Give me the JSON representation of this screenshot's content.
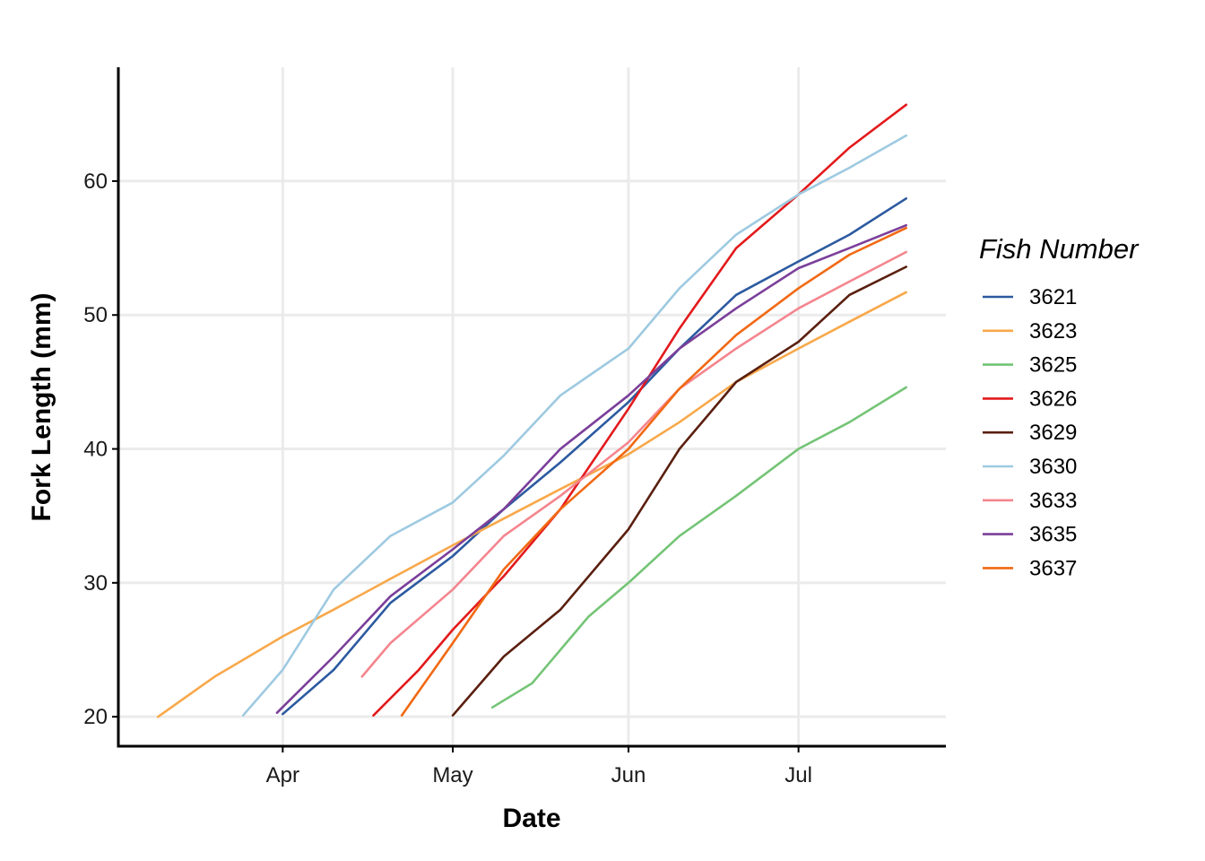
{
  "chart_data": {
    "type": "line",
    "xlabel": "Date",
    "ylabel": "Fork Length (mm)",
    "x_ticks": [
      {
        "label": "Apr",
        "value": "04-01"
      },
      {
        "label": "May",
        "value": "05-01"
      },
      {
        "label": "Jun",
        "value": "06-01"
      },
      {
        "label": "Jul",
        "value": "07-01"
      }
    ],
    "xlim": [
      "03-03",
      "07-27"
    ],
    "y_ticks": [
      20,
      30,
      40,
      50,
      60
    ],
    "ylim": [
      17.8,
      68.5
    ],
    "grid": true,
    "legend": {
      "title": "Fish Number",
      "placement": "right"
    },
    "series": [
      {
        "name": "3621",
        "color": "#2c5aa0",
        "x": [
          "04-01",
          "04-10",
          "04-20",
          "05-01",
          "05-10",
          "05-20",
          "06-01",
          "06-10",
          "06-20",
          "07-01",
          "07-10",
          "07-20"
        ],
        "y": [
          20.2,
          23.5,
          28.5,
          32.0,
          35.5,
          39.0,
          43.5,
          47.5,
          51.5,
          54.0,
          56.0,
          58.7
        ]
      },
      {
        "name": "3623",
        "color": "#f8a84a",
        "x": [
          "03-10",
          "03-20",
          "04-01",
          "04-10",
          "04-20",
          "05-01",
          "05-10",
          "05-20",
          "06-01",
          "06-10",
          "06-20",
          "07-01",
          "07-10",
          "07-20"
        ],
        "y": [
          20.0,
          23.0,
          26.0,
          28.0,
          30.3,
          32.8,
          34.8,
          37.0,
          39.6,
          42.0,
          45.0,
          47.5,
          49.5,
          51.7
        ]
      },
      {
        "name": "3625",
        "color": "#74c476",
        "x": [
          "05-08",
          "05-15",
          "05-25",
          "06-01",
          "06-10",
          "06-20",
          "07-01",
          "07-10",
          "07-20"
        ],
        "y": [
          20.7,
          22.5,
          27.5,
          30.0,
          33.5,
          36.5,
          40.0,
          42.0,
          44.6
        ]
      },
      {
        "name": "3626",
        "color": "#e31a1c",
        "x": [
          "04-17",
          "04-25",
          "05-01",
          "05-10",
          "05-20",
          "06-01",
          "06-10",
          "06-20",
          "07-01",
          "07-10",
          "07-20"
        ],
        "y": [
          20.1,
          23.5,
          26.5,
          30.5,
          35.5,
          43.0,
          49.0,
          55.0,
          59.0,
          62.5,
          65.7
        ]
      },
      {
        "name": "3629",
        "color": "#5a1f0f",
        "x": [
          "05-01",
          "05-10",
          "05-20",
          "06-01",
          "06-10",
          "06-20",
          "07-01",
          "07-10",
          "07-20"
        ],
        "y": [
          20.1,
          24.5,
          28.0,
          34.0,
          40.0,
          45.0,
          48.0,
          51.5,
          53.6
        ]
      },
      {
        "name": "3630",
        "color": "#9ecae1",
        "x": [
          "03-25",
          "04-01",
          "04-10",
          "04-20",
          "05-01",
          "05-10",
          "05-20",
          "06-01",
          "06-10",
          "06-20",
          "07-01",
          "07-10",
          "07-20"
        ],
        "y": [
          20.1,
          23.5,
          29.5,
          33.5,
          36.0,
          39.5,
          44.0,
          47.5,
          52.0,
          56.0,
          59.0,
          61.0,
          63.4
        ]
      },
      {
        "name": "3633",
        "color": "#f4858e",
        "x": [
          "04-15",
          "04-20",
          "05-01",
          "05-10",
          "05-20",
          "06-01",
          "06-10",
          "06-20",
          "07-01",
          "07-10",
          "07-20"
        ],
        "y": [
          23.0,
          25.5,
          29.5,
          33.5,
          36.5,
          40.5,
          44.5,
          47.5,
          50.5,
          52.5,
          54.7
        ]
      },
      {
        "name": "3635",
        "color": "#7b3f9a",
        "x": [
          "03-31",
          "04-10",
          "04-20",
          "05-01",
          "05-10",
          "05-20",
          "06-01",
          "06-10",
          "06-20",
          "07-01",
          "07-10",
          "07-20"
        ],
        "y": [
          20.3,
          24.5,
          29.0,
          32.5,
          35.5,
          40.0,
          44.0,
          47.5,
          50.5,
          53.5,
          55.0,
          56.7
        ]
      },
      {
        "name": "3637",
        "color": "#f16913",
        "x": [
          "04-22",
          "05-01",
          "05-10",
          "05-20",
          "06-01",
          "06-10",
          "06-20",
          "07-01",
          "07-10",
          "07-20"
        ],
        "y": [
          20.1,
          25.5,
          31.0,
          35.5,
          40.0,
          44.5,
          48.5,
          52.0,
          54.5,
          56.5
        ]
      }
    ]
  }
}
